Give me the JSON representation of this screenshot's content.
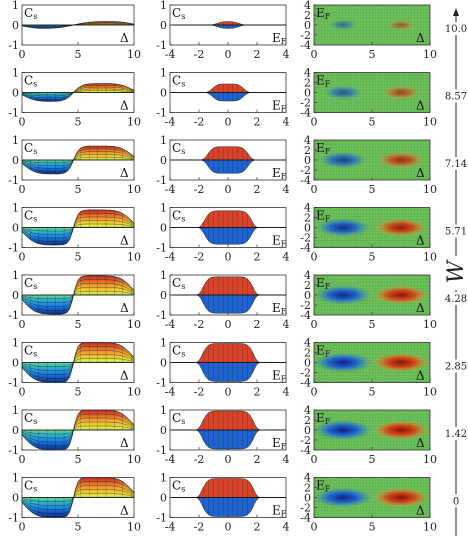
{
  "chart_data": {
    "type": "surface-grid",
    "rows": 8,
    "columns": [
      {
        "id": "delta-col",
        "kind": "surface",
        "xticks": [
          "0",
          "5",
          "10"
        ],
        "yticks": [
          "1",
          "0",
          "-1"
        ],
        "xlim": [
          0,
          10
        ],
        "ylim": [
          -1,
          1
        ],
        "corner_label": {
          "main": "C",
          "sub": "s"
        },
        "axis_label": "Δ"
      },
      {
        "id": "ef-col",
        "kind": "surface",
        "xticks": [
          "-4",
          "-2",
          "0",
          "2",
          "4"
        ],
        "yticks": [
          "1",
          "0",
          "-1"
        ],
        "xlim": [
          -4,
          4
        ],
        "ylim": [
          -1,
          1
        ],
        "corner_label": {
          "main": "C",
          "sub": "s"
        },
        "axis_label": {
          "main": "E",
          "sub": "F"
        }
      },
      {
        "id": "map-col",
        "kind": "heatmap",
        "xticks": [
          "0",
          "5",
          "10"
        ],
        "yticks": [
          "4",
          "2",
          "0",
          "-2",
          "-4"
        ],
        "xlim": [
          0,
          10
        ],
        "ylim": [
          -4,
          4
        ],
        "corner_label": {
          "main": "E",
          "sub": "F"
        },
        "axis_label": "Δ"
      }
    ],
    "w_axis": {
      "label": "W",
      "ticks": [
        "10.0",
        "8.57",
        "7.14",
        "5.71",
        "4.28",
        "2.85",
        "1.42",
        "0"
      ],
      "values": [
        10.0,
        8.57,
        7.14,
        5.71,
        4.28,
        2.85,
        1.42,
        0
      ]
    },
    "amplitude_by_row": [
      0.18,
      0.45,
      0.7,
      0.88,
      0.96,
      1.0,
      1.0,
      1.0
    ]
  }
}
